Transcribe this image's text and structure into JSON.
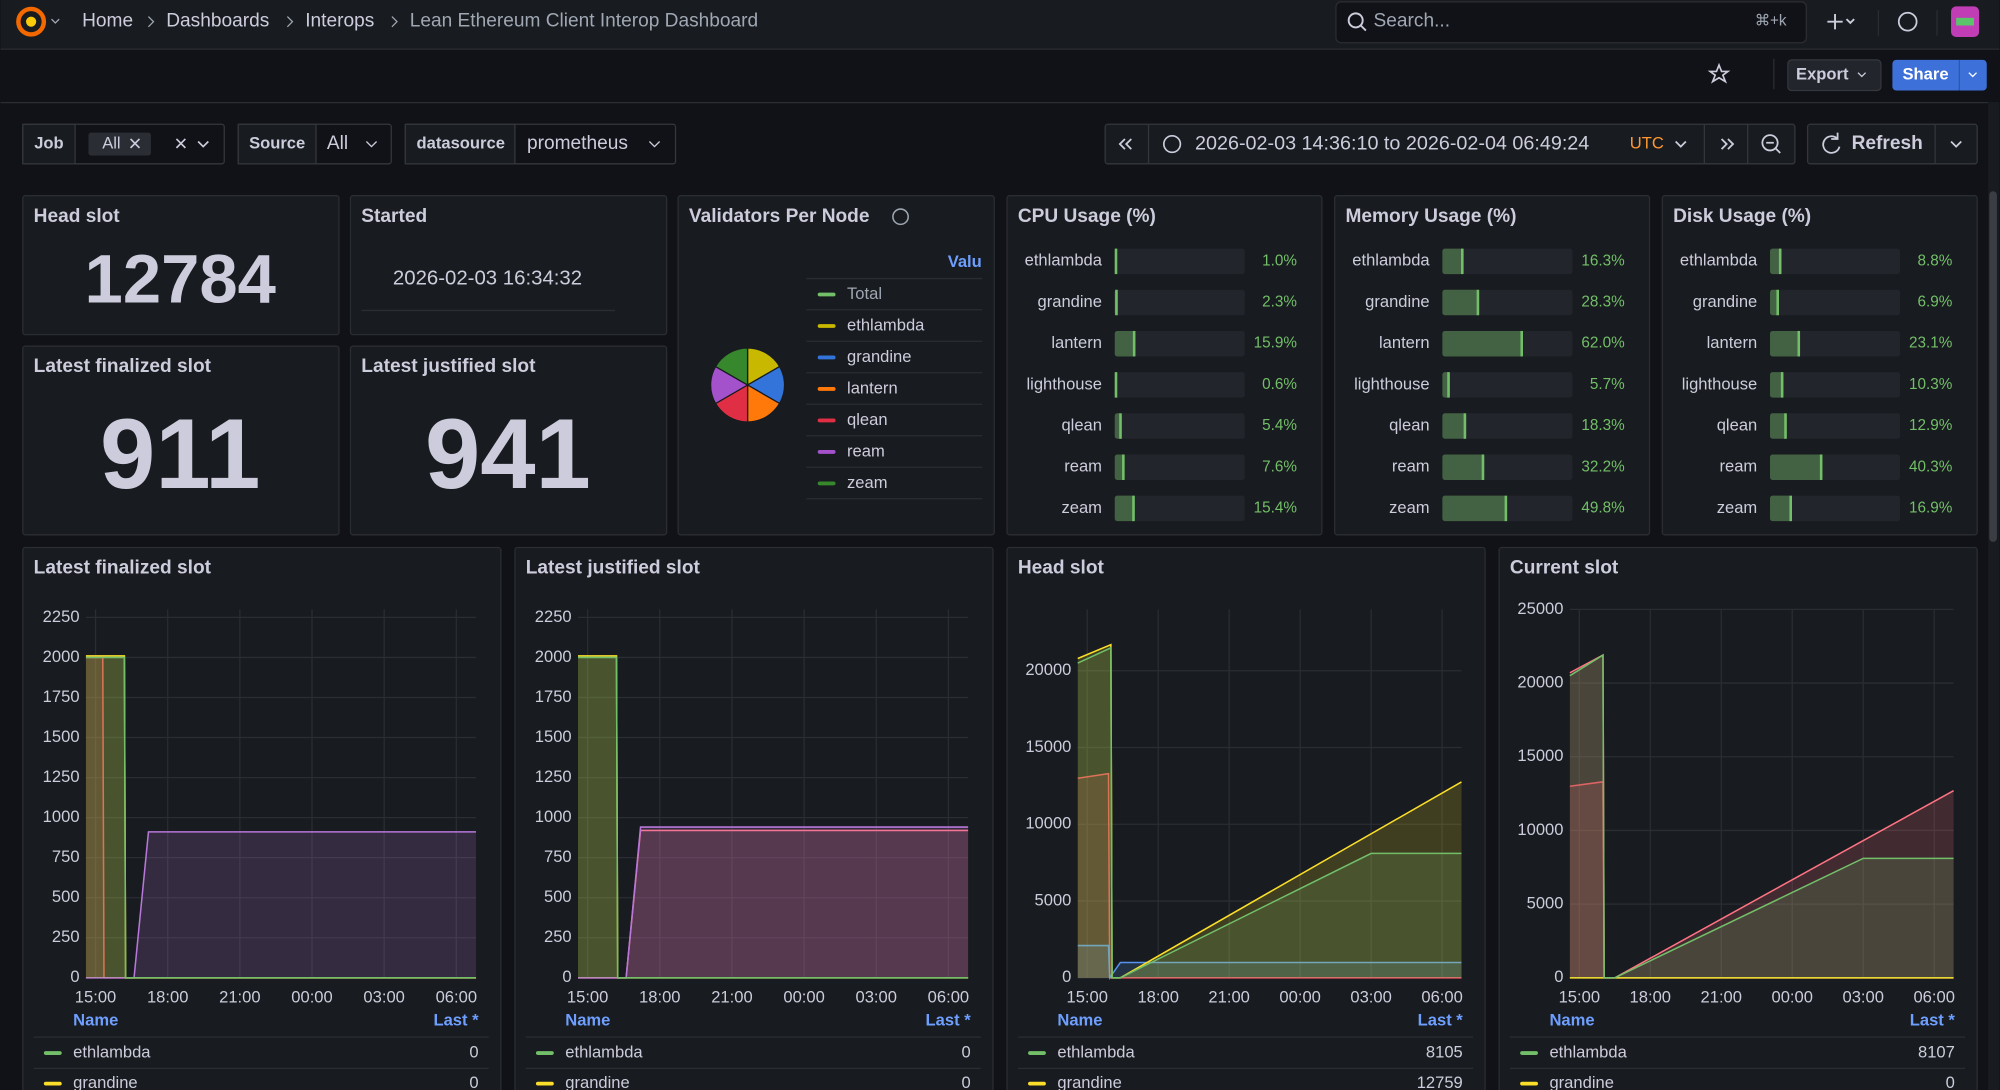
{
  "breadcrumb": {
    "home": "Home",
    "items": [
      "Dashboards",
      "Interops"
    ],
    "current": "Lean Ethereum Client Interop Dashboard"
  },
  "search": {
    "placeholder": "Search...",
    "shortcut": "⌘+k"
  },
  "actions": {
    "export": "Export",
    "share": "Share"
  },
  "variables": [
    {
      "label": "Job",
      "value": "All"
    },
    {
      "label": "Source",
      "value": "All"
    },
    {
      "label": "datasource",
      "value": "prometheus"
    }
  ],
  "time_picker": {
    "range": "2026-02-03 14:36:10 to 2026-02-04 06:49:24",
    "timezone": "UTC",
    "refresh": "Refresh"
  },
  "stats": [
    {
      "title": "Head slot",
      "value": 12784
    },
    {
      "title": "Started",
      "value": "2026-02-03 16:34:32"
    },
    {
      "title": "Latest finalized slot",
      "value": 911
    },
    {
      "title": "Latest justified slot",
      "value": 941
    }
  ],
  "pie": {
    "type": "pie",
    "title": "Validators Per Node",
    "column": "Valu",
    "total": "Total",
    "total_color": "#73bf69",
    "categories": [
      "ethlambda",
      "grandine",
      "lantern",
      "qlean",
      "ream",
      "zeam"
    ],
    "colors": [
      "#c9b800",
      "#3274d9",
      "#ff780a",
      "#e02f44",
      "#a352cc",
      "#37872d"
    ],
    "values": [
      1,
      1,
      1,
      1,
      1,
      1
    ]
  },
  "gauges": [
    {
      "type": "bar-gauge",
      "title": "CPU Usage (%)",
      "range": [
        0,
        100
      ],
      "color": "#73bf69",
      "categories": [
        "ethlambda",
        "grandine",
        "lantern",
        "lighthouse",
        "qlean",
        "ream",
        "zeam"
      ],
      "values": [
        1.0,
        2.3,
        15.9,
        0.6,
        5.4,
        7.6,
        15.4
      ],
      "value_labels": [
        "1.0%",
        "2.3%",
        "15.9%",
        "0.6%",
        "5.4%",
        "7.6%",
        "15.4%"
      ]
    },
    {
      "type": "bar-gauge",
      "title": "Memory Usage (%)",
      "range": [
        0,
        100
      ],
      "color": "#73bf69",
      "categories": [
        "ethlambda",
        "grandine",
        "lantern",
        "lighthouse",
        "qlean",
        "ream",
        "zeam"
      ],
      "values": [
        16.3,
        28.3,
        62.0,
        5.7,
        18.3,
        32.2,
        49.8
      ],
      "value_labels": [
        "16.3%",
        "28.3%",
        "62.0%",
        "5.7%",
        "18.3%",
        "32.2%",
        "49.8%"
      ]
    },
    {
      "type": "bar-gauge",
      "title": "Disk Usage (%)",
      "range": [
        0,
        100
      ],
      "color": "#73bf69",
      "categories": [
        "ethlambda",
        "grandine",
        "lantern",
        "lighthouse",
        "qlean",
        "ream",
        "zeam"
      ],
      "values": [
        8.8,
        6.9,
        23.1,
        10.3,
        12.9,
        40.3,
        16.9
      ],
      "value_labels": [
        "8.8%",
        "6.9%",
        "23.1%",
        "10.3%",
        "12.9%",
        "40.3%",
        "16.9%"
      ]
    }
  ],
  "charts": [
    {
      "type": "line",
      "title": "Latest finalized slot",
      "legend_columns": [
        "Name",
        "Last *"
      ],
      "xlim": [
        14.6,
        30.82
      ],
      "xticks": [
        {
          "value": 15,
          "label": "15:00"
        },
        {
          "value": 18,
          "label": "18:00"
        },
        {
          "value": 21,
          "label": "21:00"
        },
        {
          "value": 24,
          "label": "00:00"
        },
        {
          "value": 27,
          "label": "03:00"
        },
        {
          "value": 30,
          "label": "06:00"
        }
      ],
      "ylim": [
        0,
        2300
      ],
      "yticks": [
        0,
        250,
        500,
        750,
        1000,
        1250,
        1500,
        1750,
        2000,
        2250
      ],
      "series": [
        {
          "name": "ethlambda",
          "color": "#73bf69",
          "x": [
            14.6,
            16.2,
            16.25,
            30.82
          ],
          "values": [
            2000,
            2000,
            0,
            0
          ],
          "last": 0
        },
        {
          "name": "grandine",
          "color": "#fade2a",
          "x": [
            14.6,
            16.2,
            16.25,
            30.82
          ],
          "values": [
            2010,
            2010,
            0,
            0
          ],
          "last": 0
        },
        {
          "name": null,
          "color": "#b877d9",
          "x": [
            14.6,
            16.6,
            17.2,
            30.82
          ],
          "values": [
            0,
            0,
            911,
            911
          ]
        },
        {
          "name": null,
          "color": "#f2495c",
          "x": [
            14.6,
            15.3,
            15.35,
            30.82
          ],
          "values": [
            2000,
            2000,
            0,
            0
          ]
        }
      ]
    },
    {
      "type": "line",
      "title": "Latest justified slot",
      "legend_columns": [
        "Name",
        "Last *"
      ],
      "xlim": [
        14.6,
        30.82
      ],
      "xticks": [
        {
          "value": 15,
          "label": "15:00"
        },
        {
          "value": 18,
          "label": "18:00"
        },
        {
          "value": 21,
          "label": "21:00"
        },
        {
          "value": 24,
          "label": "00:00"
        },
        {
          "value": 27,
          "label": "03:00"
        },
        {
          "value": 30,
          "label": "06:00"
        }
      ],
      "ylim": [
        0,
        2300
      ],
      "yticks": [
        0,
        250,
        500,
        750,
        1000,
        1250,
        1500,
        1750,
        2000,
        2250
      ],
      "series": [
        {
          "name": "ethlambda",
          "color": "#73bf69",
          "x": [
            14.6,
            16.2,
            16.25,
            30.82
          ],
          "values": [
            2000,
            2000,
            0,
            0
          ],
          "last": 0
        },
        {
          "name": "grandine",
          "color": "#fade2a",
          "x": [
            14.6,
            16.2,
            16.25,
            30.82
          ],
          "values": [
            2010,
            2010,
            0,
            0
          ],
          "last": 0
        },
        {
          "name": null,
          "color": "#b877d9",
          "x": [
            14.6,
            16.6,
            17.2,
            30.82
          ],
          "values": [
            0,
            0,
            941,
            941
          ]
        },
        {
          "name": null,
          "color": "#ff7383",
          "x": [
            14.6,
            16.6,
            17.2,
            30.82
          ],
          "values": [
            0,
            0,
            920,
            920
          ]
        }
      ]
    },
    {
      "type": "line",
      "title": "Head slot",
      "legend_columns": [
        "Name",
        "Last *"
      ],
      "xlim": [
        14.6,
        30.82
      ],
      "xticks": [
        {
          "value": 15,
          "label": "15:00"
        },
        {
          "value": 18,
          "label": "18:00"
        },
        {
          "value": 21,
          "label": "21:00"
        },
        {
          "value": 24,
          "label": "00:00"
        },
        {
          "value": 27,
          "label": "03:00"
        },
        {
          "value": 30,
          "label": "06:00"
        }
      ],
      "ylim": [
        0,
        24000
      ],
      "yticks": [
        0,
        5000,
        10000,
        15000,
        20000
      ],
      "series": [
        {
          "name": "ethlambda",
          "color": "#73bf69",
          "x": [
            14.6,
            16.0,
            16.05,
            16.4,
            27.0,
            30.82
          ],
          "values": [
            20500,
            21500,
            0,
            0,
            8105,
            8105
          ],
          "last": 8105
        },
        {
          "name": "grandine",
          "color": "#fade2a",
          "x": [
            14.6,
            16.0,
            16.05,
            16.4,
            30.82
          ],
          "values": [
            20800,
            21700,
            0,
            0,
            12759
          ],
          "last": 12759
        },
        {
          "name": null,
          "color": "#5794f2",
          "x": [
            14.6,
            15.9,
            15.95,
            16.4,
            30.82
          ],
          "values": [
            2100,
            2100,
            0,
            1000,
            1000
          ]
        },
        {
          "name": null,
          "color": "#f2495c",
          "x": [
            14.6,
            15.9,
            15.95,
            30.82
          ],
          "values": [
            13000,
            13300,
            0,
            0
          ]
        }
      ]
    },
    {
      "type": "line",
      "title": "Current slot",
      "legend_columns": [
        "Name",
        "Last *"
      ],
      "xlim": [
        14.6,
        30.82
      ],
      "xticks": [
        {
          "value": 15,
          "label": "15:00"
        },
        {
          "value": 18,
          "label": "18:00"
        },
        {
          "value": 21,
          "label": "21:00"
        },
        {
          "value": 24,
          "label": "00:00"
        },
        {
          "value": 27,
          "label": "03:00"
        },
        {
          "value": 30,
          "label": "06:00"
        }
      ],
      "ylim": [
        0,
        25000
      ],
      "yticks": [
        0,
        5000,
        10000,
        15000,
        20000,
        25000
      ],
      "series": [
        {
          "name": "ethlambda",
          "color": "#73bf69",
          "x": [
            14.6,
            16.0,
            16.05,
            16.5,
            27.0,
            30.82
          ],
          "values": [
            20500,
            21900,
            0,
            0,
            8107,
            8107
          ],
          "last": 8107
        },
        {
          "name": "grandine",
          "color": "#fade2a",
          "x": [
            14.6,
            30.82
          ],
          "values": [
            0,
            0
          ],
          "last": 0
        },
        {
          "name": null,
          "color": "#ff7383",
          "x": [
            14.6,
            16.0,
            16.05,
            16.5,
            30.82
          ],
          "values": [
            20700,
            21900,
            0,
            0,
            12700
          ]
        },
        {
          "name": null,
          "color": "#f2495c",
          "x": [
            14.6,
            16.0,
            16.05,
            30.82
          ],
          "values": [
            13000,
            13300,
            0,
            0
          ]
        }
      ]
    }
  ]
}
